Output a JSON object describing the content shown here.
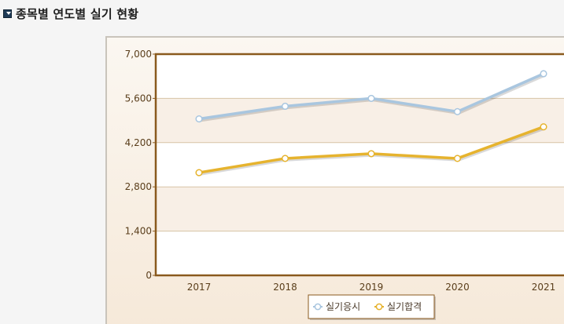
{
  "header": {
    "icon": "download-arrow-icon",
    "title": "종목별 연도별 실기 현황"
  },
  "colors": {
    "plot_border": "#8a5a1e",
    "band_light": "#ffffff",
    "band_tint": "#f8efe6",
    "gridline": "#d7c4a6",
    "series_1": "#a9c6df",
    "series_2": "#e6b32e"
  },
  "chart_data": {
    "type": "line",
    "categories": [
      "2017",
      "2018",
      "2019",
      "2020",
      "2021"
    ],
    "ylim": [
      0,
      7000
    ],
    "yticks": [
      0,
      1400,
      2800,
      4200,
      5600,
      7000
    ],
    "ytick_labels": [
      "0",
      "1,400",
      "2,800",
      "4,200",
      "5,600",
      "7,000"
    ],
    "grid": true,
    "legend_position": "bottom-center",
    "series": [
      {
        "name": "실기응시",
        "values": [
          4950,
          5350,
          5600,
          5180,
          6380
        ]
      },
      {
        "name": "실기합격",
        "values": [
          3250,
          3700,
          3850,
          3700,
          4700
        ]
      }
    ]
  }
}
